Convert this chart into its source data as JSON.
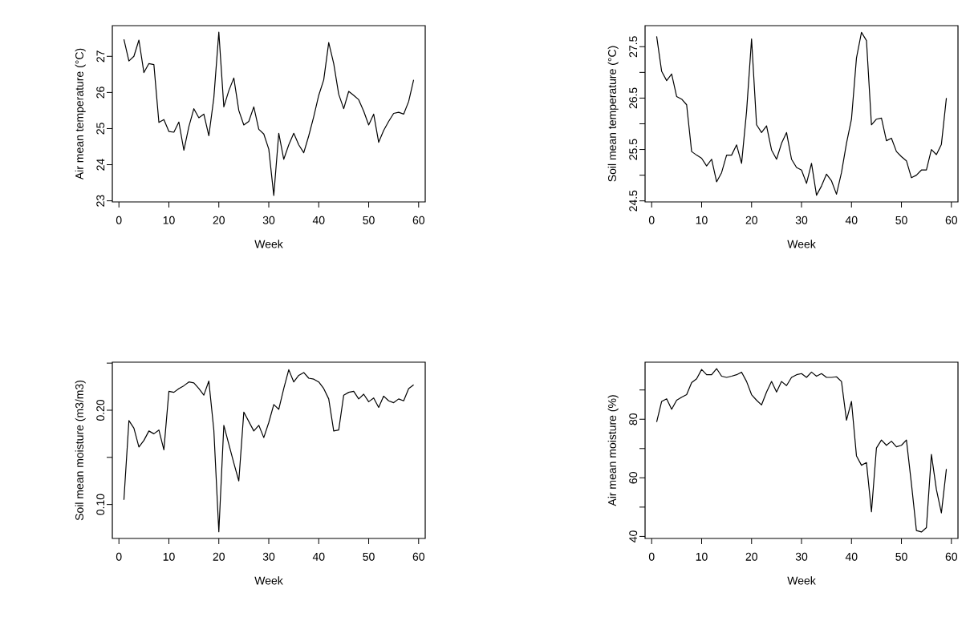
{
  "chart_data": [
    {
      "type": "line",
      "xlabel": "Week",
      "ylabel": "Air mean temperature (°C)",
      "xlim": [
        -1.32,
        61.32
      ],
      "ylim": [
        22.97,
        27.85
      ],
      "xticks": [
        0,
        10,
        20,
        30,
        40,
        50,
        60
      ],
      "yticks": [
        23,
        24,
        25,
        26,
        27
      ],
      "x": [
        1,
        2,
        3,
        4,
        5,
        6,
        7,
        8,
        9,
        10,
        11,
        12,
        13,
        14,
        15,
        16,
        17,
        18,
        19,
        20,
        21,
        22,
        23,
        24,
        25,
        26,
        27,
        28,
        29,
        30,
        31,
        32,
        33,
        34,
        35,
        36,
        37,
        38,
        39,
        40,
        41,
        42,
        43,
        44,
        45,
        46,
        47,
        48,
        49,
        50,
        51,
        52,
        53,
        54,
        55,
        56,
        57,
        58,
        59
      ],
      "series": [
        {
          "color": "#000000",
          "values": [
            27.47,
            26.87,
            27.0,
            27.45,
            26.55,
            26.8,
            26.77,
            25.17,
            25.25,
            24.92,
            24.9,
            25.18,
            24.4,
            25.05,
            25.55,
            25.3,
            25.4,
            24.8,
            25.85,
            27.67,
            25.6,
            26.05,
            26.4,
            25.5,
            25.1,
            25.2,
            25.6,
            24.98,
            24.85,
            24.43,
            23.15,
            24.87,
            24.15,
            24.55,
            24.87,
            24.55,
            24.33,
            24.8,
            25.33,
            25.92,
            26.35,
            27.38,
            26.8,
            25.95,
            25.55,
            26.03,
            25.92,
            25.8,
            25.48,
            25.1,
            25.4,
            24.62,
            24.95,
            25.2,
            25.42,
            25.45,
            25.4,
            25.75,
            26.35
          ]
        }
      ]
    },
    {
      "type": "line",
      "xlabel": "Week",
      "ylabel": "Soil mean temperature (°C)",
      "xlim": [
        -1.32,
        61.32
      ],
      "ylim": [
        24.48,
        27.91
      ],
      "xticks": [
        0,
        10,
        20,
        30,
        40,
        50,
        60
      ],
      "yticks": [
        24.5,
        {
          "value": 25,
          "label": null
        },
        25.5,
        {
          "value": 26,
          "label": null
        },
        26.5,
        {
          "value": 27,
          "label": null
        },
        27.5
      ],
      "x": [
        1,
        2,
        3,
        4,
        5,
        6,
        7,
        8,
        9,
        10,
        11,
        12,
        13,
        14,
        15,
        16,
        17,
        18,
        19,
        20,
        21,
        22,
        23,
        24,
        25,
        26,
        27,
        28,
        29,
        30,
        31,
        32,
        33,
        34,
        35,
        36,
        37,
        38,
        39,
        40,
        41,
        42,
        43,
        44,
        45,
        46,
        47,
        48,
        49,
        50,
        51,
        52,
        53,
        54,
        55,
        56,
        57,
        58,
        59
      ],
      "series": [
        {
          "color": "#000000",
          "values": [
            27.7,
            27.02,
            26.84,
            26.97,
            26.53,
            26.48,
            26.37,
            25.46,
            25.39,
            25.33,
            25.18,
            25.31,
            24.87,
            25.05,
            25.39,
            25.39,
            25.59,
            25.23,
            26.24,
            27.65,
            25.98,
            25.83,
            25.96,
            25.49,
            25.31,
            25.62,
            25.83,
            25.31,
            25.15,
            25.1,
            24.84,
            25.23,
            24.61,
            24.79,
            25.02,
            24.89,
            24.63,
            25.05,
            25.62,
            26.09,
            27.28,
            27.78,
            27.62,
            25.98,
            26.09,
            26.11,
            25.67,
            25.72,
            25.46,
            25.36,
            25.28,
            24.95,
            25.0,
            25.1,
            25.1,
            25.5,
            25.4,
            25.6,
            26.5
          ]
        }
      ]
    },
    {
      "type": "line",
      "xlabel": "Week",
      "ylabel": "Soil mean moisture (m3/m3)",
      "xlim": [
        -1.32,
        61.32
      ],
      "ylim": [
        0.064,
        0.251
      ],
      "xticks": [
        0,
        10,
        20,
        30,
        40,
        50,
        60
      ],
      "yticks": [
        {
          "value": 0.1,
          "label": "0.10"
        },
        {
          "value": 0.15,
          "label": null
        },
        {
          "value": 0.2,
          "label": "0.20"
        },
        {
          "value": 0.25,
          "label": null
        }
      ],
      "x": [
        1,
        2,
        3,
        4,
        5,
        6,
        7,
        8,
        9,
        10,
        11,
        12,
        13,
        14,
        15,
        16,
        17,
        18,
        19,
        20,
        21,
        22,
        23,
        24,
        25,
        26,
        27,
        28,
        29,
        30,
        31,
        32,
        33,
        34,
        35,
        36,
        37,
        38,
        39,
        40,
        41,
        42,
        43,
        44,
        45,
        46,
        47,
        48,
        49,
        50,
        51,
        52,
        53,
        54,
        55,
        56,
        57,
        58,
        59
      ],
      "series": [
        {
          "color": "#000000",
          "values": [
            0.105,
            0.189,
            0.181,
            0.161,
            0.168,
            0.178,
            0.175,
            0.179,
            0.158,
            0.22,
            0.219,
            0.223,
            0.226,
            0.23,
            0.229,
            0.223,
            0.216,
            0.231,
            0.179,
            0.071,
            0.184,
            0.164,
            0.144,
            0.125,
            0.198,
            0.188,
            0.178,
            0.184,
            0.171,
            0.187,
            0.206,
            0.201,
            0.223,
            0.243,
            0.23,
            0.237,
            0.24,
            0.234,
            0.233,
            0.23,
            0.223,
            0.212,
            0.178,
            0.179,
            0.216,
            0.219,
            0.22,
            0.212,
            0.217,
            0.209,
            0.213,
            0.203,
            0.215,
            0.21,
            0.208,
            0.212,
            0.21,
            0.223,
            0.227
          ]
        }
      ]
    },
    {
      "type": "line",
      "xlabel": "Week",
      "ylabel": "Air mean moisture (%)",
      "xlim": [
        -1.32,
        61.32
      ],
      "ylim": [
        39.3,
        99.5
      ],
      "xticks": [
        0,
        10,
        20,
        30,
        40,
        50,
        60
      ],
      "yticks": [
        40,
        {
          "value": 50,
          "label": null
        },
        60,
        {
          "value": 70,
          "label": null
        },
        80,
        {
          "value": 90,
          "label": null
        }
      ],
      "x": [
        1,
        2,
        3,
        4,
        5,
        6,
        7,
        8,
        9,
        10,
        11,
        12,
        13,
        14,
        15,
        16,
        17,
        18,
        19,
        20,
        21,
        22,
        23,
        24,
        25,
        26,
        27,
        28,
        29,
        30,
        31,
        32,
        33,
        34,
        35,
        36,
        37,
        38,
        39,
        40,
        41,
        42,
        43,
        44,
        45,
        46,
        47,
        48,
        49,
        50,
        51,
        52,
        53,
        54,
        55,
        56,
        57,
        58,
        59
      ],
      "series": [
        {
          "color": "#000000",
          "values": [
            79.1,
            86.1,
            87.0,
            83.4,
            86.5,
            87.5,
            88.4,
            92.5,
            93.8,
            97.0,
            95.2,
            95.2,
            97.3,
            94.7,
            94.3,
            94.7,
            95.2,
            96.1,
            92.9,
            88.4,
            86.5,
            84.9,
            89.3,
            92.9,
            89.3,
            92.9,
            91.5,
            94.3,
            95.2,
            95.6,
            94.3,
            96.1,
            94.7,
            95.6,
            94.3,
            94.3,
            94.5,
            92.9,
            79.7,
            86.1,
            67.5,
            64.3,
            65.2,
            48.4,
            70.2,
            72.9,
            71.1,
            72.5,
            70.6,
            71.1,
            72.9,
            58.0,
            42.0,
            41.5,
            43.0,
            68.0,
            56.0,
            48.0,
            63.0
          ]
        }
      ]
    }
  ]
}
